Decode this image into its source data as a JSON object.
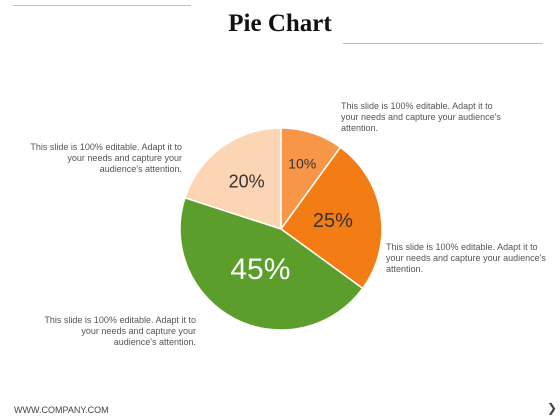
{
  "title": "Pie Chart",
  "notes": {
    "top_right": "This slide is 100% editable. Adapt it to your needs and capture your audience's attention.",
    "right": "This slide is 100% editable. Adapt it to your needs and capture your audience's attention.",
    "top_left": "This slide is 100% editable. Adapt it to your needs and capture your audience's attention.",
    "bottom_left": "This slide is 100% editable. Adapt it to your needs and capture your audience's attention."
  },
  "footer": {
    "website": "WWW.COMPANY.COM",
    "next_glyph": "❯"
  },
  "chart_data": {
    "type": "pie",
    "slices": [
      {
        "label": "10%",
        "value": 10,
        "color": "#f79646"
      },
      {
        "label": "25%",
        "value": 25,
        "color": "#f47c14"
      },
      {
        "label": "45%",
        "value": 45,
        "color": "#5c9e2b"
      },
      {
        "label": "20%",
        "value": 20,
        "color": "#fcd5b4"
      }
    ]
  }
}
